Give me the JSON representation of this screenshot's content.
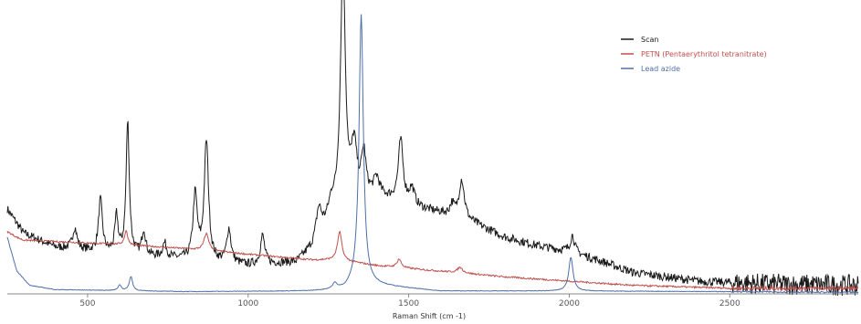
{
  "chart_data": {
    "type": "line",
    "title": "",
    "xlabel": "Raman Shift (cm -1)",
    "ylabel": "",
    "xlim": [
      250,
      2900
    ],
    "ylim": [
      0,
      1.0
    ],
    "xticks": [
      500,
      1000,
      1500,
      2000,
      2500
    ],
    "grid": false,
    "legend_position": "top-right",
    "series": [
      {
        "name": "Scan",
        "color": "#1a1a1a",
        "baseline": [
          [
            250,
            0.3
          ],
          [
            300,
            0.215
          ],
          [
            400,
            0.165
          ],
          [
            600,
            0.14
          ],
          [
            800,
            0.12
          ],
          [
            1000,
            0.1
          ],
          [
            1150,
            0.11
          ],
          [
            1200,
            0.16
          ],
          [
            1250,
            0.25
          ],
          [
            1300,
            0.31
          ],
          [
            1350,
            0.34
          ],
          [
            1400,
            0.345
          ],
          [
            1450,
            0.33
          ],
          [
            1500,
            0.31
          ],
          [
            1600,
            0.285
          ],
          [
            1700,
            0.25
          ],
          [
            1800,
            0.2
          ],
          [
            1900,
            0.17
          ],
          [
            2000,
            0.15
          ],
          [
            2100,
            0.115
          ],
          [
            2200,
            0.075
          ],
          [
            2400,
            0.045
          ],
          [
            2600,
            0.035
          ],
          [
            2900,
            0.03
          ]
        ],
        "peaks": [
          [
            460,
            0.075,
            8
          ],
          [
            540,
            0.185,
            7
          ],
          [
            590,
            0.13,
            6
          ],
          [
            625,
            0.47,
            6
          ],
          [
            675,
            0.09,
            7
          ],
          [
            740,
            0.05,
            8
          ],
          [
            835,
            0.23,
            8
          ],
          [
            870,
            0.42,
            8
          ],
          [
            940,
            0.12,
            8
          ],
          [
            1045,
            0.1,
            8
          ],
          [
            1220,
            0.1,
            10
          ],
          [
            1260,
            0.05,
            10
          ],
          [
            1295,
            0.86,
            9
          ],
          [
            1330,
            0.18,
            10
          ],
          [
            1360,
            0.15,
            8
          ],
          [
            1400,
            0.06,
            10
          ],
          [
            1475,
            0.22,
            9
          ],
          [
            1510,
            0.06,
            10
          ],
          [
            1635,
            0.04,
            8
          ],
          [
            1665,
            0.14,
            10
          ],
          [
            2010,
            0.06,
            8
          ]
        ],
        "noise": 0.015
      },
      {
        "name": "PETN (Pentaerythritol tetranitrate)",
        "color": "#c0504d",
        "baseline": [
          [
            250,
            0.22
          ],
          [
            280,
            0.2
          ],
          [
            300,
            0.19
          ],
          [
            400,
            0.185
          ],
          [
            600,
            0.175
          ],
          [
            800,
            0.16
          ],
          [
            1000,
            0.14
          ],
          [
            1200,
            0.12
          ],
          [
            1280,
            0.12
          ],
          [
            1400,
            0.1
          ],
          [
            1600,
            0.08
          ],
          [
            1800,
            0.06
          ],
          [
            2000,
            0.045
          ],
          [
            2200,
            0.03
          ],
          [
            2500,
            0.02
          ],
          [
            2900,
            0.02
          ]
        ],
        "peaks": [
          [
            620,
            0.05,
            6
          ],
          [
            870,
            0.06,
            9
          ],
          [
            1285,
            0.1,
            8
          ],
          [
            1470,
            0.03,
            8
          ],
          [
            1660,
            0.02,
            10
          ]
        ],
        "noise": 0.003
      },
      {
        "name": "Lead azide",
        "color": "#4f6fa8",
        "baseline": [
          [
            250,
            0.2
          ],
          [
            280,
            0.08
          ],
          [
            320,
            0.03
          ],
          [
            400,
            0.015
          ],
          [
            800,
            0.008
          ],
          [
            1200,
            0.01
          ],
          [
            1300,
            0.015
          ],
          [
            1340,
            0.04
          ],
          [
            1400,
            0.03
          ],
          [
            1600,
            0.01
          ],
          [
            2000,
            0.01
          ],
          [
            2500,
            0.008
          ],
          [
            2900,
            0.005
          ]
        ],
        "peaks": [
          [
            600,
            0.02,
            6
          ],
          [
            635,
            0.05,
            6
          ],
          [
            1352,
            0.95,
            8
          ],
          [
            2005,
            0.12,
            8
          ],
          [
            1270,
            0.02,
            8
          ]
        ],
        "noise": 0.001
      }
    ]
  }
}
